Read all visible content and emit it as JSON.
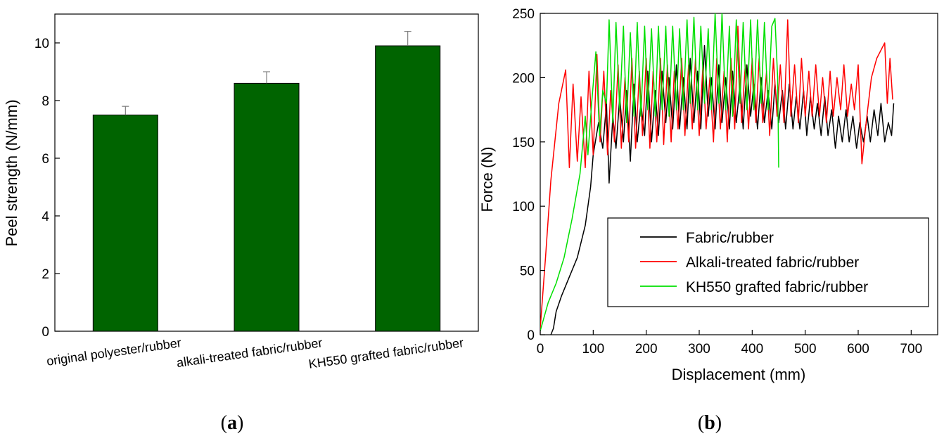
{
  "chart_data": [
    {
      "type": "bar",
      "panel_label": "a",
      "categories": [
        "original polyester/rubber",
        "alkali-treated fabric/rubber",
        "KH550 grafted fabric/rubber"
      ],
      "values": [
        7.5,
        8.6,
        9.9
      ],
      "errors": [
        0.3,
        0.4,
        0.5
      ],
      "xlabel": "",
      "ylabel": "Peel strength (N/mm)",
      "ylim": [
        0,
        11
      ],
      "yticks": [
        0,
        2,
        4,
        6,
        8,
        10
      ],
      "grid": false,
      "bar_color": "#006400"
    },
    {
      "type": "line",
      "panel_label": "b",
      "xlabel": "Displacement (mm)",
      "ylabel": "Force (N)",
      "xlim": [
        0,
        750
      ],
      "ylim": [
        0,
        250
      ],
      "xticks": [
        0,
        100,
        200,
        300,
        400,
        500,
        600,
        700
      ],
      "yticks": [
        0,
        50,
        100,
        150,
        200,
        250
      ],
      "grid": false,
      "legend_position": "lower-right",
      "series": [
        {
          "name": "Fabric/rubber",
          "color": "#000000",
          "points": [
            [
              20,
              0
            ],
            [
              25,
              5
            ],
            [
              30,
              18
            ],
            [
              40,
              30
            ],
            [
              55,
              45
            ],
            [
              70,
              60
            ],
            [
              85,
              85
            ],
            [
              95,
              115
            ],
            [
              100,
              140
            ],
            [
              110,
              165
            ],
            [
              118,
              145
            ],
            [
              125,
              180
            ],
            [
              130,
              118
            ],
            [
              137,
              170
            ],
            [
              143,
              145
            ],
            [
              150,
              185
            ],
            [
              157,
              150
            ],
            [
              163,
              190
            ],
            [
              170,
              135
            ],
            [
              177,
              195
            ],
            [
              183,
              150
            ],
            [
              190,
              180
            ],
            [
              197,
              155
            ],
            [
              203,
              205
            ],
            [
              210,
              150
            ],
            [
              217,
              190
            ],
            [
              223,
              155
            ],
            [
              230,
              205
            ],
            [
              237,
              165
            ],
            [
              243,
              200
            ],
            [
              250,
              160
            ],
            [
              257,
              210
            ],
            [
              263,
              160
            ],
            [
              270,
              200
            ],
            [
              277,
              160
            ],
            [
              283,
              215
            ],
            [
              290,
              165
            ],
            [
              297,
              205
            ],
            [
              303,
              160
            ],
            [
              310,
              225
            ],
            [
              317,
              170
            ],
            [
              323,
              200
            ],
            [
              330,
              160
            ],
            [
              337,
              210
            ],
            [
              343,
              165
            ],
            [
              350,
              200
            ],
            [
              357,
              160
            ],
            [
              363,
              205
            ],
            [
              370,
              165
            ],
            [
              377,
              195
            ],
            [
              383,
              160
            ],
            [
              390,
              210
            ],
            [
              397,
              170
            ],
            [
              403,
              195
            ],
            [
              410,
              160
            ],
            [
              417,
              200
            ],
            [
              423,
              165
            ],
            [
              430,
              190
            ],
            [
              437,
              160
            ],
            [
              443,
              195
            ],
            [
              450,
              165
            ],
            [
              457,
              190
            ],
            [
              463,
              160
            ],
            [
              470,
              195
            ],
            [
              477,
              160
            ],
            [
              483,
              185
            ],
            [
              490,
              160
            ],
            [
              497,
              190
            ],
            [
              503,
              155
            ],
            [
              510,
              185
            ],
            [
              517,
              160
            ],
            [
              523,
              180
            ],
            [
              530,
              155
            ],
            [
              537,
              185
            ],
            [
              543,
              155
            ],
            [
              550,
              175
            ],
            [
              557,
              145
            ],
            [
              563,
              170
            ],
            [
              570,
              150
            ],
            [
              577,
              175
            ],
            [
              583,
              150
            ],
            [
              590,
              170
            ],
            [
              597,
              145
            ],
            [
              603,
              165
            ],
            [
              610,
              150
            ],
            [
              617,
              170
            ],
            [
              623,
              150
            ],
            [
              630,
              175
            ],
            [
              637,
              155
            ],
            [
              643,
              180
            ],
            [
              650,
              150
            ],
            [
              657,
              165
            ],
            [
              663,
              155
            ],
            [
              667,
              180
            ]
          ]
        },
        {
          "name": "Alkali-treated fabric/rubber",
          "color": "#ff0000",
          "points": [
            [
              0,
              5
            ],
            [
              10,
              60
            ],
            [
              20,
              120
            ],
            [
              35,
              180
            ],
            [
              48,
              206
            ],
            [
              55,
              130
            ],
            [
              62,
              195
            ],
            [
              70,
              135
            ],
            [
              77,
              185
            ],
            [
              85,
              130
            ],
            [
              92,
              205
            ],
            [
              100,
              140
            ],
            [
              107,
              218
            ],
            [
              113,
              150
            ],
            [
              120,
              205
            ],
            [
              127,
              140
            ],
            [
              133,
              190
            ],
            [
              140,
              150
            ],
            [
              147,
              210
            ],
            [
              153,
              145
            ],
            [
              160,
              200
            ],
            [
              167,
              150
            ],
            [
              173,
              215
            ],
            [
              180,
              145
            ],
            [
              187,
              205
            ],
            [
              193,
              155
            ],
            [
              200,
              215
            ],
            [
              207,
              145
            ],
            [
              213,
              205
            ],
            [
              220,
              150
            ],
            [
              227,
              215
            ],
            [
              233,
              148
            ],
            [
              240,
              210
            ],
            [
              247,
              150
            ],
            [
              253,
              205
            ],
            [
              260,
              160
            ],
            [
              267,
              215
            ],
            [
              273,
              155
            ],
            [
              280,
              210
            ],
            [
              287,
              160
            ],
            [
              293,
              215
            ],
            [
              300,
              155
            ],
            [
              307,
              210
            ],
            [
              313,
              160
            ],
            [
              320,
              200
            ],
            [
              327,
              150
            ],
            [
              333,
              215
            ],
            [
              340,
              160
            ],
            [
              347,
              205
            ],
            [
              353,
              150
            ],
            [
              360,
              215
            ],
            [
              367,
              160
            ],
            [
              373,
              240
            ],
            [
              380,
              165
            ],
            [
              387,
              210
            ],
            [
              393,
              160
            ],
            [
              400,
              215
            ],
            [
              407,
              165
            ],
            [
              413,
              215
            ],
            [
              420,
              165
            ],
            [
              427,
              205
            ],
            [
              433,
              155
            ],
            [
              440,
              215
            ],
            [
              447,
              170
            ],
            [
              453,
              210
            ],
            [
              460,
              165
            ],
            [
              467,
              245
            ],
            [
              473,
              170
            ],
            [
              480,
              210
            ],
            [
              487,
              165
            ],
            [
              493,
              215
            ],
            [
              500,
              170
            ],
            [
              507,
              205
            ],
            [
              513,
              170
            ],
            [
              520,
              210
            ],
            [
              527,
              170
            ],
            [
              533,
              200
            ],
            [
              540,
              165
            ],
            [
              547,
              205
            ],
            [
              553,
              170
            ],
            [
              560,
              200
            ],
            [
              567,
              175
            ],
            [
              573,
              210
            ],
            [
              580,
              170
            ],
            [
              587,
              195
            ],
            [
              593,
              175
            ],
            [
              600,
              210
            ],
            [
              607,
              133
            ],
            [
              615,
              165
            ],
            [
              625,
              200
            ],
            [
              635,
              215
            ],
            [
              650,
              227
            ],
            [
              655,
              180
            ],
            [
              660,
              215
            ],
            [
              665,
              183
            ]
          ]
        },
        {
          "name": "KH550 grafted fabric/rubber",
          "color": "#00e000",
          "points": [
            [
              0,
              3
            ],
            [
              15,
              25
            ],
            [
              30,
              40
            ],
            [
              45,
              60
            ],
            [
              60,
              90
            ],
            [
              75,
              125
            ],
            [
              85,
              170
            ],
            [
              90,
              140
            ],
            [
              97,
              180
            ],
            [
              105,
              220
            ],
            [
              112,
              155
            ],
            [
              118,
              190
            ],
            [
              125,
              180
            ],
            [
              130,
              245
            ],
            [
              137,
              165
            ],
            [
              143,
              243
            ],
            [
              150,
              175
            ],
            [
              157,
              240
            ],
            [
              163,
              165
            ],
            [
              170,
              235
            ],
            [
              177,
              170
            ],
            [
              183,
              243
            ],
            [
              190,
              170
            ],
            [
              197,
              240
            ],
            [
              203,
              175
            ],
            [
              210,
              238
            ],
            [
              217,
              170
            ],
            [
              223,
              240
            ],
            [
              230,
              175
            ],
            [
              237,
              240
            ],
            [
              243,
              170
            ],
            [
              250,
              240
            ],
            [
              257,
              175
            ],
            [
              263,
              238
            ],
            [
              270,
              175
            ],
            [
              277,
              245
            ],
            [
              283,
              180
            ],
            [
              290,
              247
            ],
            [
              297,
              175
            ],
            [
              303,
              240
            ],
            [
              310,
              180
            ],
            [
              317,
              238
            ],
            [
              323,
              175
            ],
            [
              330,
              250
            ],
            [
              337,
              180
            ],
            [
              343,
              250
            ],
            [
              350,
              175
            ],
            [
              357,
              240
            ],
            [
              363,
              170
            ],
            [
              370,
              245
            ],
            [
              377,
              180
            ],
            [
              383,
              243
            ],
            [
              390,
              175
            ],
            [
              397,
              245
            ],
            [
              403,
              175
            ],
            [
              410,
              245
            ],
            [
              417,
              180
            ],
            [
              423,
              243
            ],
            [
              430,
              175
            ],
            [
              437,
              240
            ],
            [
              443,
              246
            ],
            [
              448,
              200
            ],
            [
              450,
              130
            ]
          ]
        }
      ]
    }
  ],
  "panels": {
    "a": "(a)",
    "b": "(b)"
  },
  "colors": {
    "bar": "#006400",
    "error": "#808080"
  }
}
